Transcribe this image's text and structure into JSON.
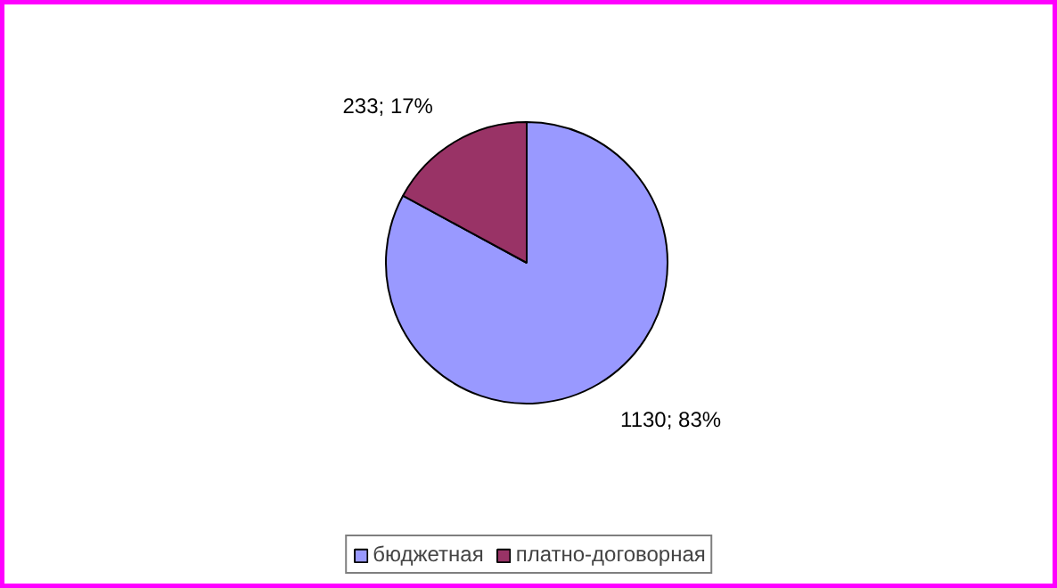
{
  "chart_data": {
    "type": "pie",
    "categories": [
      "бюджетная",
      "платно-договорная"
    ],
    "values": [
      1130,
      233
    ],
    "colors": [
      "#9999ff",
      "#993366"
    ],
    "value_labels": [
      "1130; 83%",
      "233; 17%"
    ],
    "legend": "bottom"
  }
}
